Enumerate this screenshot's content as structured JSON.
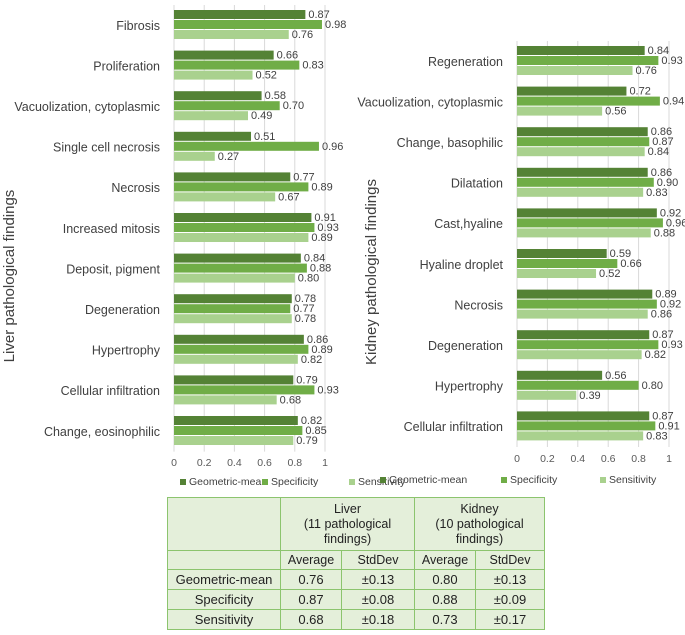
{
  "liver_axis_title": "Liver pathological findings",
  "kidney_axis_title": "Kidney pathological findings",
  "legend_items": [
    "Geometric-mean",
    "Specificity",
    "Sensitivity"
  ],
  "colors": {
    "geometric_mean": "#548235",
    "specificity": "#70ad47",
    "sensitivity": "#a9d18e",
    "table_fill": "#e4efda",
    "table_border": "#8cc46e"
  },
  "chart_data": [
    {
      "type": "bar",
      "orientation": "horizontal",
      "title": "",
      "ylabel": "Liver pathological findings",
      "xlim": [
        0,
        1
      ],
      "xticks": [
        "0",
        "0.2",
        "0.4",
        "0.6",
        "0.8",
        "1"
      ],
      "categories": [
        "Fibrosis",
        "Proliferation",
        "Vacuolization, cytoplasmic",
        "Single cell necrosis",
        "Necrosis",
        "Increased mitosis",
        "Deposit, pigment",
        "Degeneration",
        "Hypertrophy",
        "Cellular infiltration",
        "Change, eosinophilic"
      ],
      "series": [
        {
          "name": "Geometric-mean",
          "values": [
            0.87,
            0.66,
            0.58,
            0.51,
            0.77,
            0.91,
            0.84,
            0.78,
            0.86,
            0.79,
            0.82
          ],
          "labels": [
            "0.87",
            "0.66",
            "0.58",
            "0.51",
            "0.77",
            "0.91",
            "0.84",
            "0.78",
            "0.86",
            "0.79",
            "0.82"
          ]
        },
        {
          "name": "Specificity",
          "values": [
            0.98,
            0.83,
            0.7,
            0.96,
            0.89,
            0.93,
            0.88,
            0.77,
            0.89,
            0.93,
            0.85
          ],
          "labels": [
            "0.98",
            "0.83",
            "0.70",
            "0.96",
            "0.89",
            "0.93",
            "0.88",
            "0.77",
            "0.89",
            "0.93",
            "0.85"
          ]
        },
        {
          "name": "Sensitivity",
          "values": [
            0.76,
            0.52,
            0.49,
            0.27,
            0.67,
            0.89,
            0.8,
            0.78,
            0.82,
            0.68,
            0.79
          ],
          "labels": [
            "0.76",
            "0.52",
            "0.49",
            "0.27",
            "0.67",
            "0.89",
            "0.80",
            "0.78",
            "0.82",
            "0.68",
            "0.79"
          ]
        }
      ],
      "legend": "bottom"
    },
    {
      "type": "bar",
      "orientation": "horizontal",
      "title": "",
      "ylabel": "Kidney pathological findings",
      "xlim": [
        0,
        1
      ],
      "xticks": [
        "0",
        "0.2",
        "0.4",
        "0.6",
        "0.8",
        "1"
      ],
      "categories": [
        "Regeneration",
        "Vacuolization, cytoplasmic",
        "Change, basophilic",
        "Dilatation",
        "Cast,hyaline",
        "Hyaline droplet",
        "Necrosis",
        "Degeneration",
        "Hypertrophy",
        "Cellular infiltration"
      ],
      "series": [
        {
          "name": "Geometric-mean",
          "values": [
            0.84,
            0.72,
            0.86,
            0.86,
            0.92,
            0.59,
            0.89,
            0.87,
            0.56,
            0.87
          ],
          "labels": [
            "0.84",
            "0.72",
            "0.86",
            "0.86",
            "0.92",
            "0.59",
            "0.89",
            "0.87",
            "0.56",
            "0.87"
          ]
        },
        {
          "name": "Specificity",
          "values": [
            0.93,
            0.94,
            0.87,
            0.9,
            0.96,
            0.66,
            0.92,
            0.93,
            0.8,
            0.91
          ],
          "labels": [
            "0.93",
            "0.94",
            "0.87",
            "0.90",
            "0.96",
            "0.66",
            "0.92",
            "0.93",
            "0.80",
            "0.91"
          ]
        },
        {
          "name": "Sensitivity",
          "values": [
            0.76,
            0.56,
            0.84,
            0.83,
            0.88,
            0.52,
            0.86,
            0.82,
            0.39,
            0.83
          ],
          "labels": [
            "0.76",
            "0.56",
            "0.84",
            "0.83",
            "0.88",
            "0.52",
            "0.86",
            "0.82",
            "0.39",
            "0.83"
          ]
        }
      ],
      "legend": "bottom"
    }
  ],
  "summary_table": {
    "liver_header_line1": "Liver",
    "liver_header_line2": "(11 pathological",
    "liver_header_line3": "findings)",
    "kidney_header_line1": "Kidney",
    "kidney_header_line2": "(10 pathological",
    "kidney_header_line3": "findings)",
    "col_average": "Average",
    "col_stddev": "StdDev",
    "rows": [
      {
        "metric": "Geometric-mean",
        "liver_avg": "0.76",
        "liver_sd": "±0.13",
        "kidney_avg": "0.80",
        "kidney_sd": "±0.13"
      },
      {
        "metric": "Specificity",
        "liver_avg": "0.87",
        "liver_sd": "±0.08",
        "kidney_avg": "0.88",
        "kidney_sd": "±0.09"
      },
      {
        "metric": "Sensitivity",
        "liver_avg": "0.68",
        "liver_sd": "±0.18",
        "kidney_avg": "0.73",
        "kidney_sd": "±0.17"
      }
    ]
  }
}
